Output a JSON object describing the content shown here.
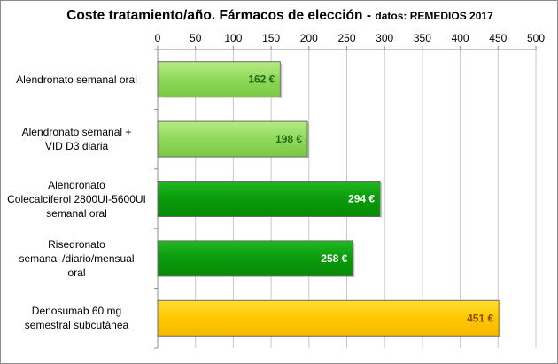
{
  "chart_data": {
    "type": "bar",
    "orientation": "horizontal",
    "title": "Coste tratamiento/año. Fármacos de elección",
    "title_separator": " - ",
    "subtitle": "datos:  REMEDIOS  2017",
    "categories": [
      [
        "Alendronato semanal oral"
      ],
      [
        "Alendronato semanal +",
        "VID D3 diaria"
      ],
      [
        "Alendronato",
        "Colecalciferol 2800UI-5600UI",
        "semanal oral"
      ],
      [
        "Risedronato",
        "semanal /diario/mensual",
        "oral"
      ],
      [
        "Denosumab 60 mg",
        "semestral subcutánea"
      ]
    ],
    "values": [
      162,
      198,
      294,
      258,
      451
    ],
    "value_labels": [
      "162 €",
      "198 €",
      "294 €",
      "258 €",
      "451 €"
    ],
    "xlim": [
      0,
      500
    ],
    "x_ticks": [
      "0",
      "50",
      "100",
      "150",
      "200",
      "250",
      "300",
      "350",
      "400",
      "450",
      "500"
    ],
    "x_axis_position": "top",
    "grid": true,
    "legend": "none",
    "colors": [
      "#8fd85a",
      "#8fd85a",
      "#0a9a0a",
      "#0a9a0a",
      "#ffc800"
    ],
    "label_colors": [
      "#1f6b12",
      "#1f6b12",
      "#ffffff",
      "#ffffff",
      "#8a4a00"
    ]
  }
}
